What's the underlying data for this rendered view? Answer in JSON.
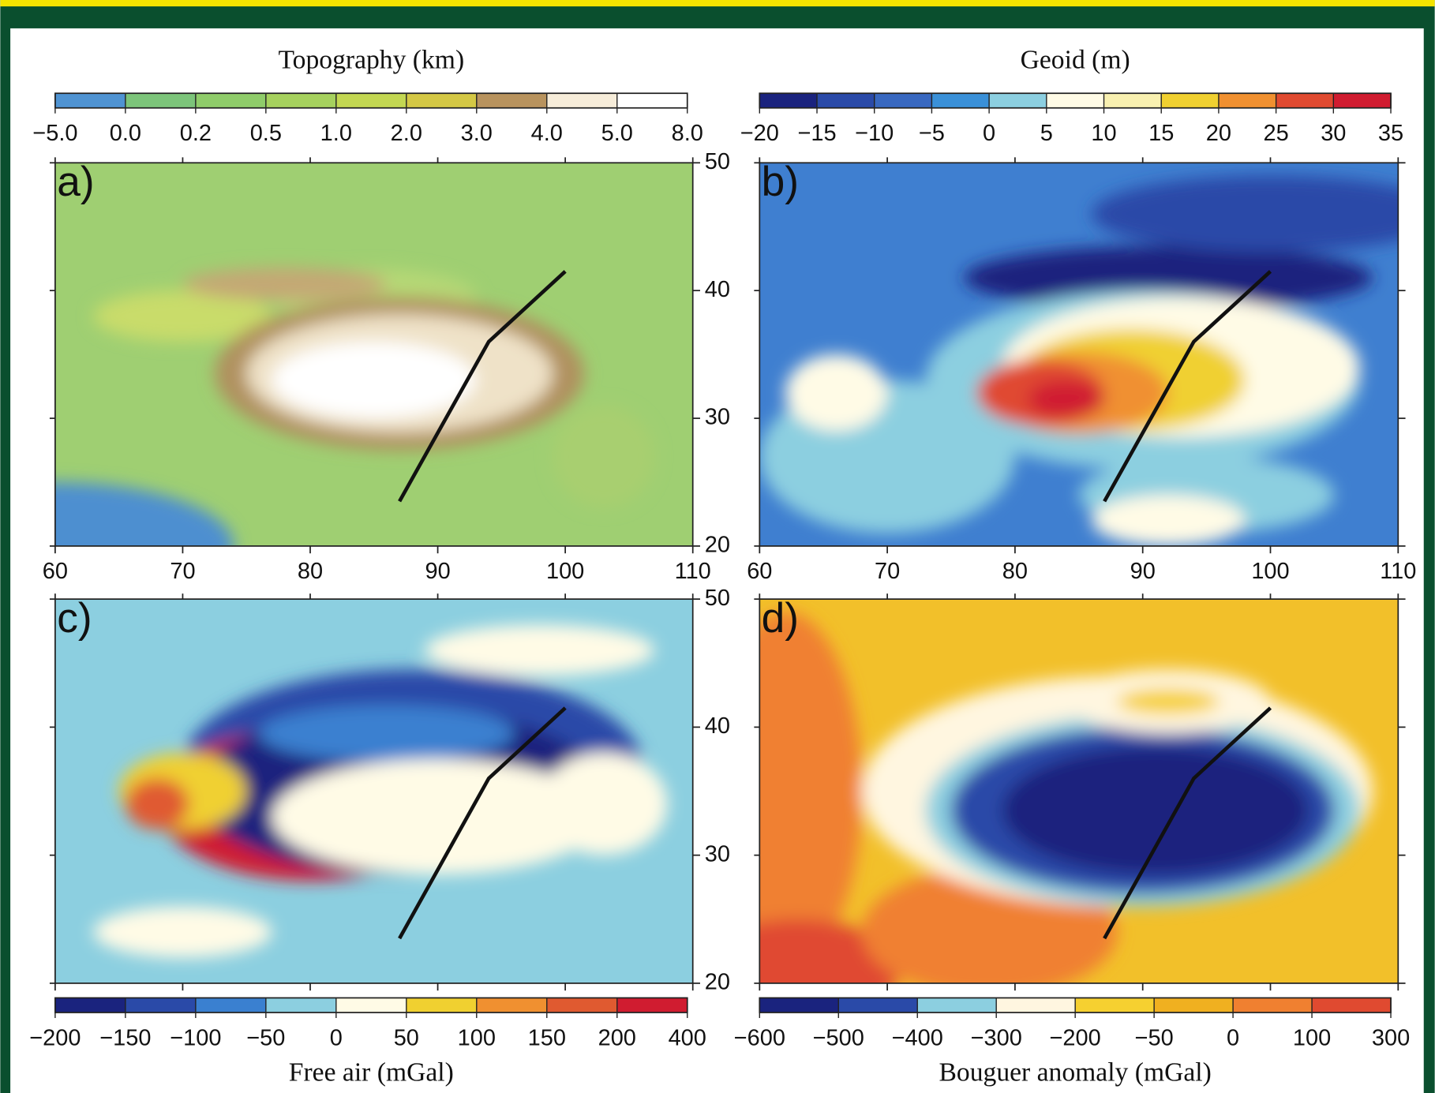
{
  "panels": [
    {
      "label": "a)",
      "colorbar": {
        "title": "Topography (km)",
        "labels": [
          "−5.0",
          "0.0",
          "0.2",
          "0.5",
          "1.0",
          "2.0",
          "3.0",
          "4.0",
          "5.0",
          "8.0"
        ],
        "colors": [
          "#4f93d2",
          "#7cc47a",
          "#8fcc6a",
          "#a6d15e",
          "#c3d752",
          "#d4c845",
          "#b8935e",
          "#f6ecd9",
          "#ffffff"
        ]
      }
    },
    {
      "label": "b)",
      "colorbar": {
        "title": "Geoid (m)",
        "labels": [
          "−20",
          "−15",
          "−10",
          "−5",
          "0",
          "5",
          "10",
          "15",
          "20",
          "25",
          "30",
          "35"
        ],
        "colors": [
          "#1a237e",
          "#2a4aa8",
          "#3868c0",
          "#3a90d8",
          "#8ccfe0",
          "#fffbe6",
          "#f8f0b0",
          "#f0d030",
          "#f09030",
          "#e04a30",
          "#d01c30"
        ]
      }
    },
    {
      "label": "c)",
      "colorbar": {
        "title": "Free air (mGal)",
        "labels": [
          "−200",
          "−150",
          "−100",
          "−50",
          "0",
          "50",
          "100",
          "150",
          "200",
          "400"
        ],
        "colors": [
          "#1a237e",
          "#2a4aa8",
          "#3a80d0",
          "#8ccfe0",
          "#fffbe6",
          "#f0d030",
          "#f09030",
          "#e05a30",
          "#d01c30"
        ]
      }
    },
    {
      "label": "d)",
      "colorbar": {
        "title": "Bouguer anomaly (mGal)",
        "labels": [
          "−600",
          "−500",
          "−400",
          "−300",
          "−200",
          "−50",
          "0",
          "100",
          "300"
        ],
        "colors": [
          "#1a237e",
          "#2a4aa8",
          "#8ccfe0",
          "#fff6e0",
          "#f6d030",
          "#f0b020",
          "#f08030",
          "#e04a30"
        ]
      }
    }
  ],
  "axes": {
    "xlim": [
      60,
      110
    ],
    "xticks": [
      60,
      70,
      80,
      90,
      100,
      110
    ],
    "ylim": [
      20,
      50
    ],
    "yticks": [
      20,
      30,
      40,
      50
    ]
  }
}
